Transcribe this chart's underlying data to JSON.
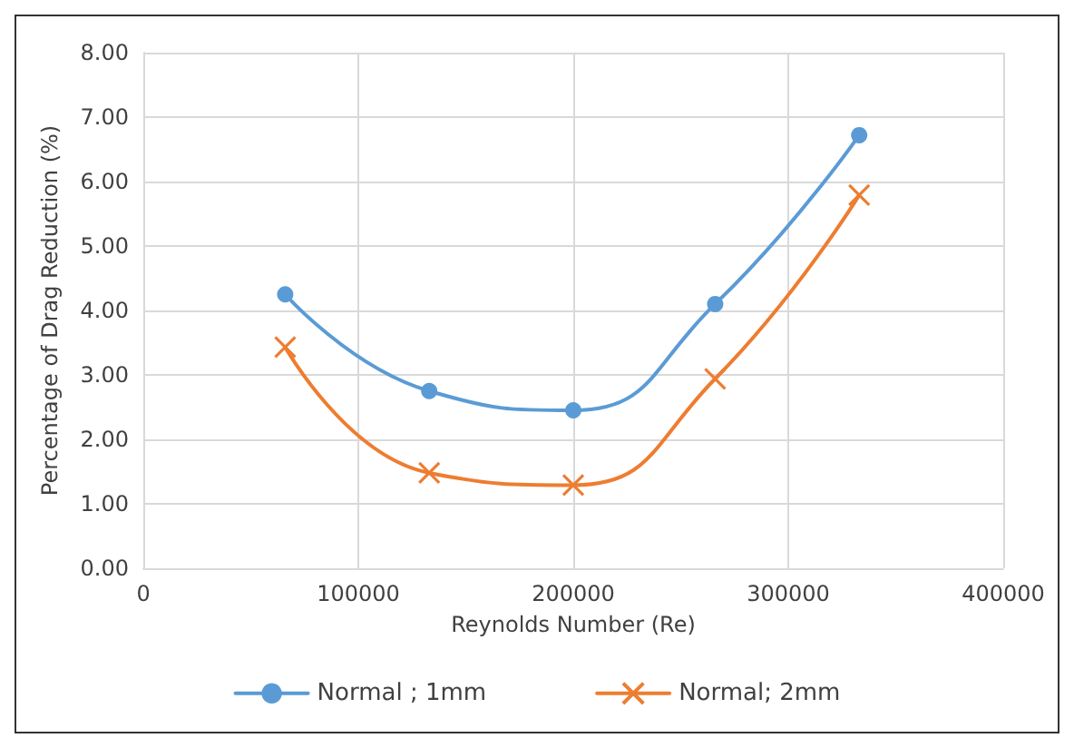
{
  "chart_data": {
    "type": "line",
    "xlabel": "Reynolds Number (Re)",
    "ylabel": "Percentage of Drag Reduction (%)",
    "x": [
      66000,
      133000,
      200000,
      266000,
      333000
    ],
    "series": [
      {
        "name": "Normal ; 1mm",
        "color": "#5b9bd5",
        "marker": "circle",
        "values": [
          4.25,
          2.75,
          2.45,
          4.1,
          6.72
        ]
      },
      {
        "name": "Normal; 2mm",
        "color": "#ed7d31",
        "marker": "cross",
        "values": [
          3.43,
          1.48,
          1.29,
          2.94,
          5.79
        ]
      }
    ],
    "xlim": [
      0,
      400000
    ],
    "xticks": [
      0,
      100000,
      200000,
      300000,
      400000
    ],
    "ylim": [
      0,
      8
    ],
    "yticks": [
      {
        "value": 0,
        "label": "0.00"
      },
      {
        "value": 1,
        "label": "1.00"
      },
      {
        "value": 2,
        "label": "2.00"
      },
      {
        "value": 3,
        "label": "3.00"
      },
      {
        "value": 4,
        "label": "4.00"
      },
      {
        "value": 5,
        "label": "5.00"
      },
      {
        "value": 6,
        "label": "6.00"
      },
      {
        "value": 7,
        "label": "7.00"
      },
      {
        "value": 8,
        "label": "8.00"
      }
    ],
    "grid": true,
    "legend": "bottom",
    "line_style": "solid"
  }
}
